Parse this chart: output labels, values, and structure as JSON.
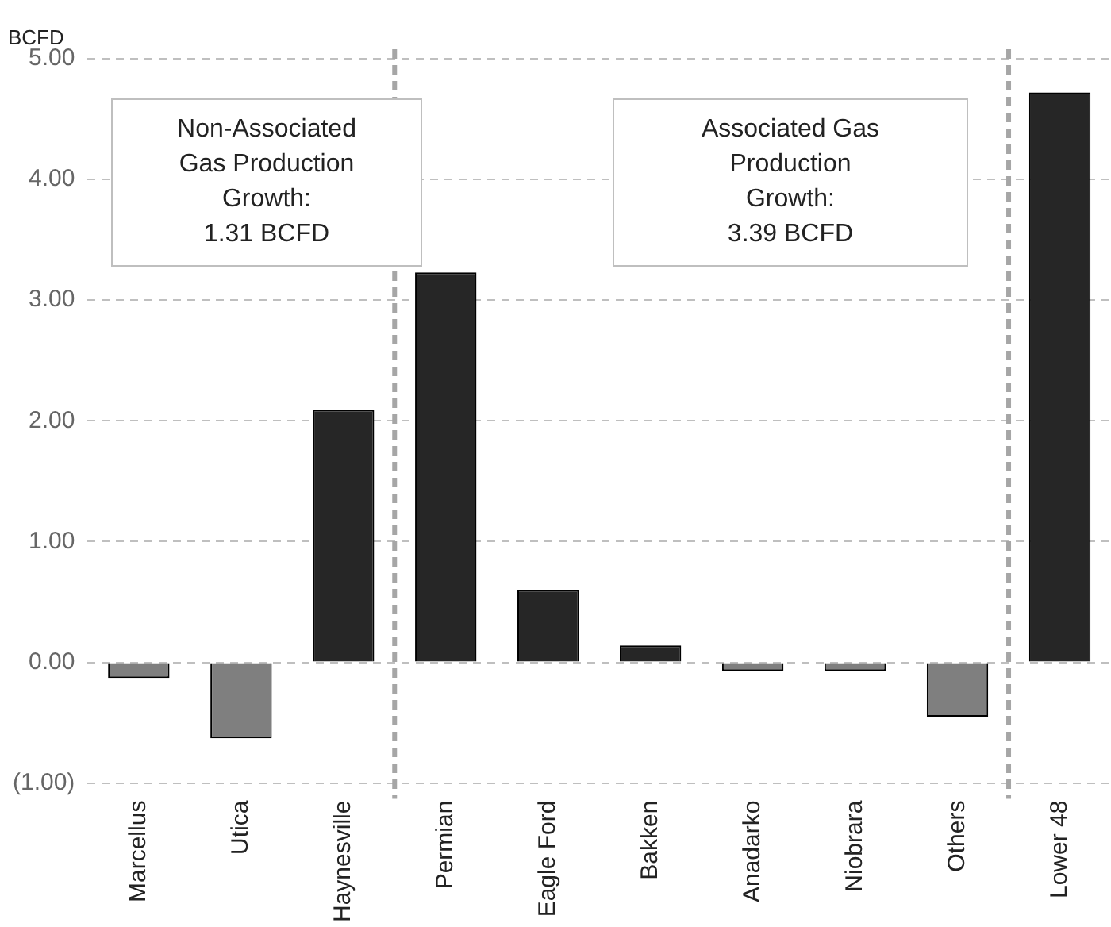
{
  "chart_data": {
    "type": "bar",
    "ylabel": "BCFD",
    "categories": [
      "Marcellus",
      "Utica",
      "Haynesville",
      "Permian",
      "Eagle Ford",
      "Bakken",
      "Anadarko",
      "Niobrara",
      "Others",
      "Lower 48"
    ],
    "values": [
      -0.13,
      -0.63,
      2.09,
      3.23,
      0.6,
      0.14,
      -0.07,
      -0.07,
      -0.45,
      4.72
    ],
    "colors": [
      "#7f7f7f",
      "#7f7f7f",
      "#262626",
      "#262626",
      "#262626",
      "#262626",
      "#7f7f7f",
      "#7f7f7f",
      "#7f7f7f",
      "#262626"
    ],
    "ylim": [
      -1,
      5
    ],
    "yticks": [
      {
        "value": -1,
        "label": "(1.00)"
      },
      {
        "value": 0,
        "label": "0.00"
      },
      {
        "value": 1,
        "label": "1.00"
      },
      {
        "value": 2,
        "label": "2.00"
      },
      {
        "value": 3,
        "label": "3.00"
      },
      {
        "value": 4,
        "label": "4.00"
      },
      {
        "value": 5,
        "label": "5.00"
      }
    ],
    "grid": "y",
    "annotations": [
      "Non-Associated\nGas Production\nGrowth:\n1.31 BCFD",
      "Associated Gas\nProduction\nGrowth:\n3.39 BCFD"
    ]
  }
}
